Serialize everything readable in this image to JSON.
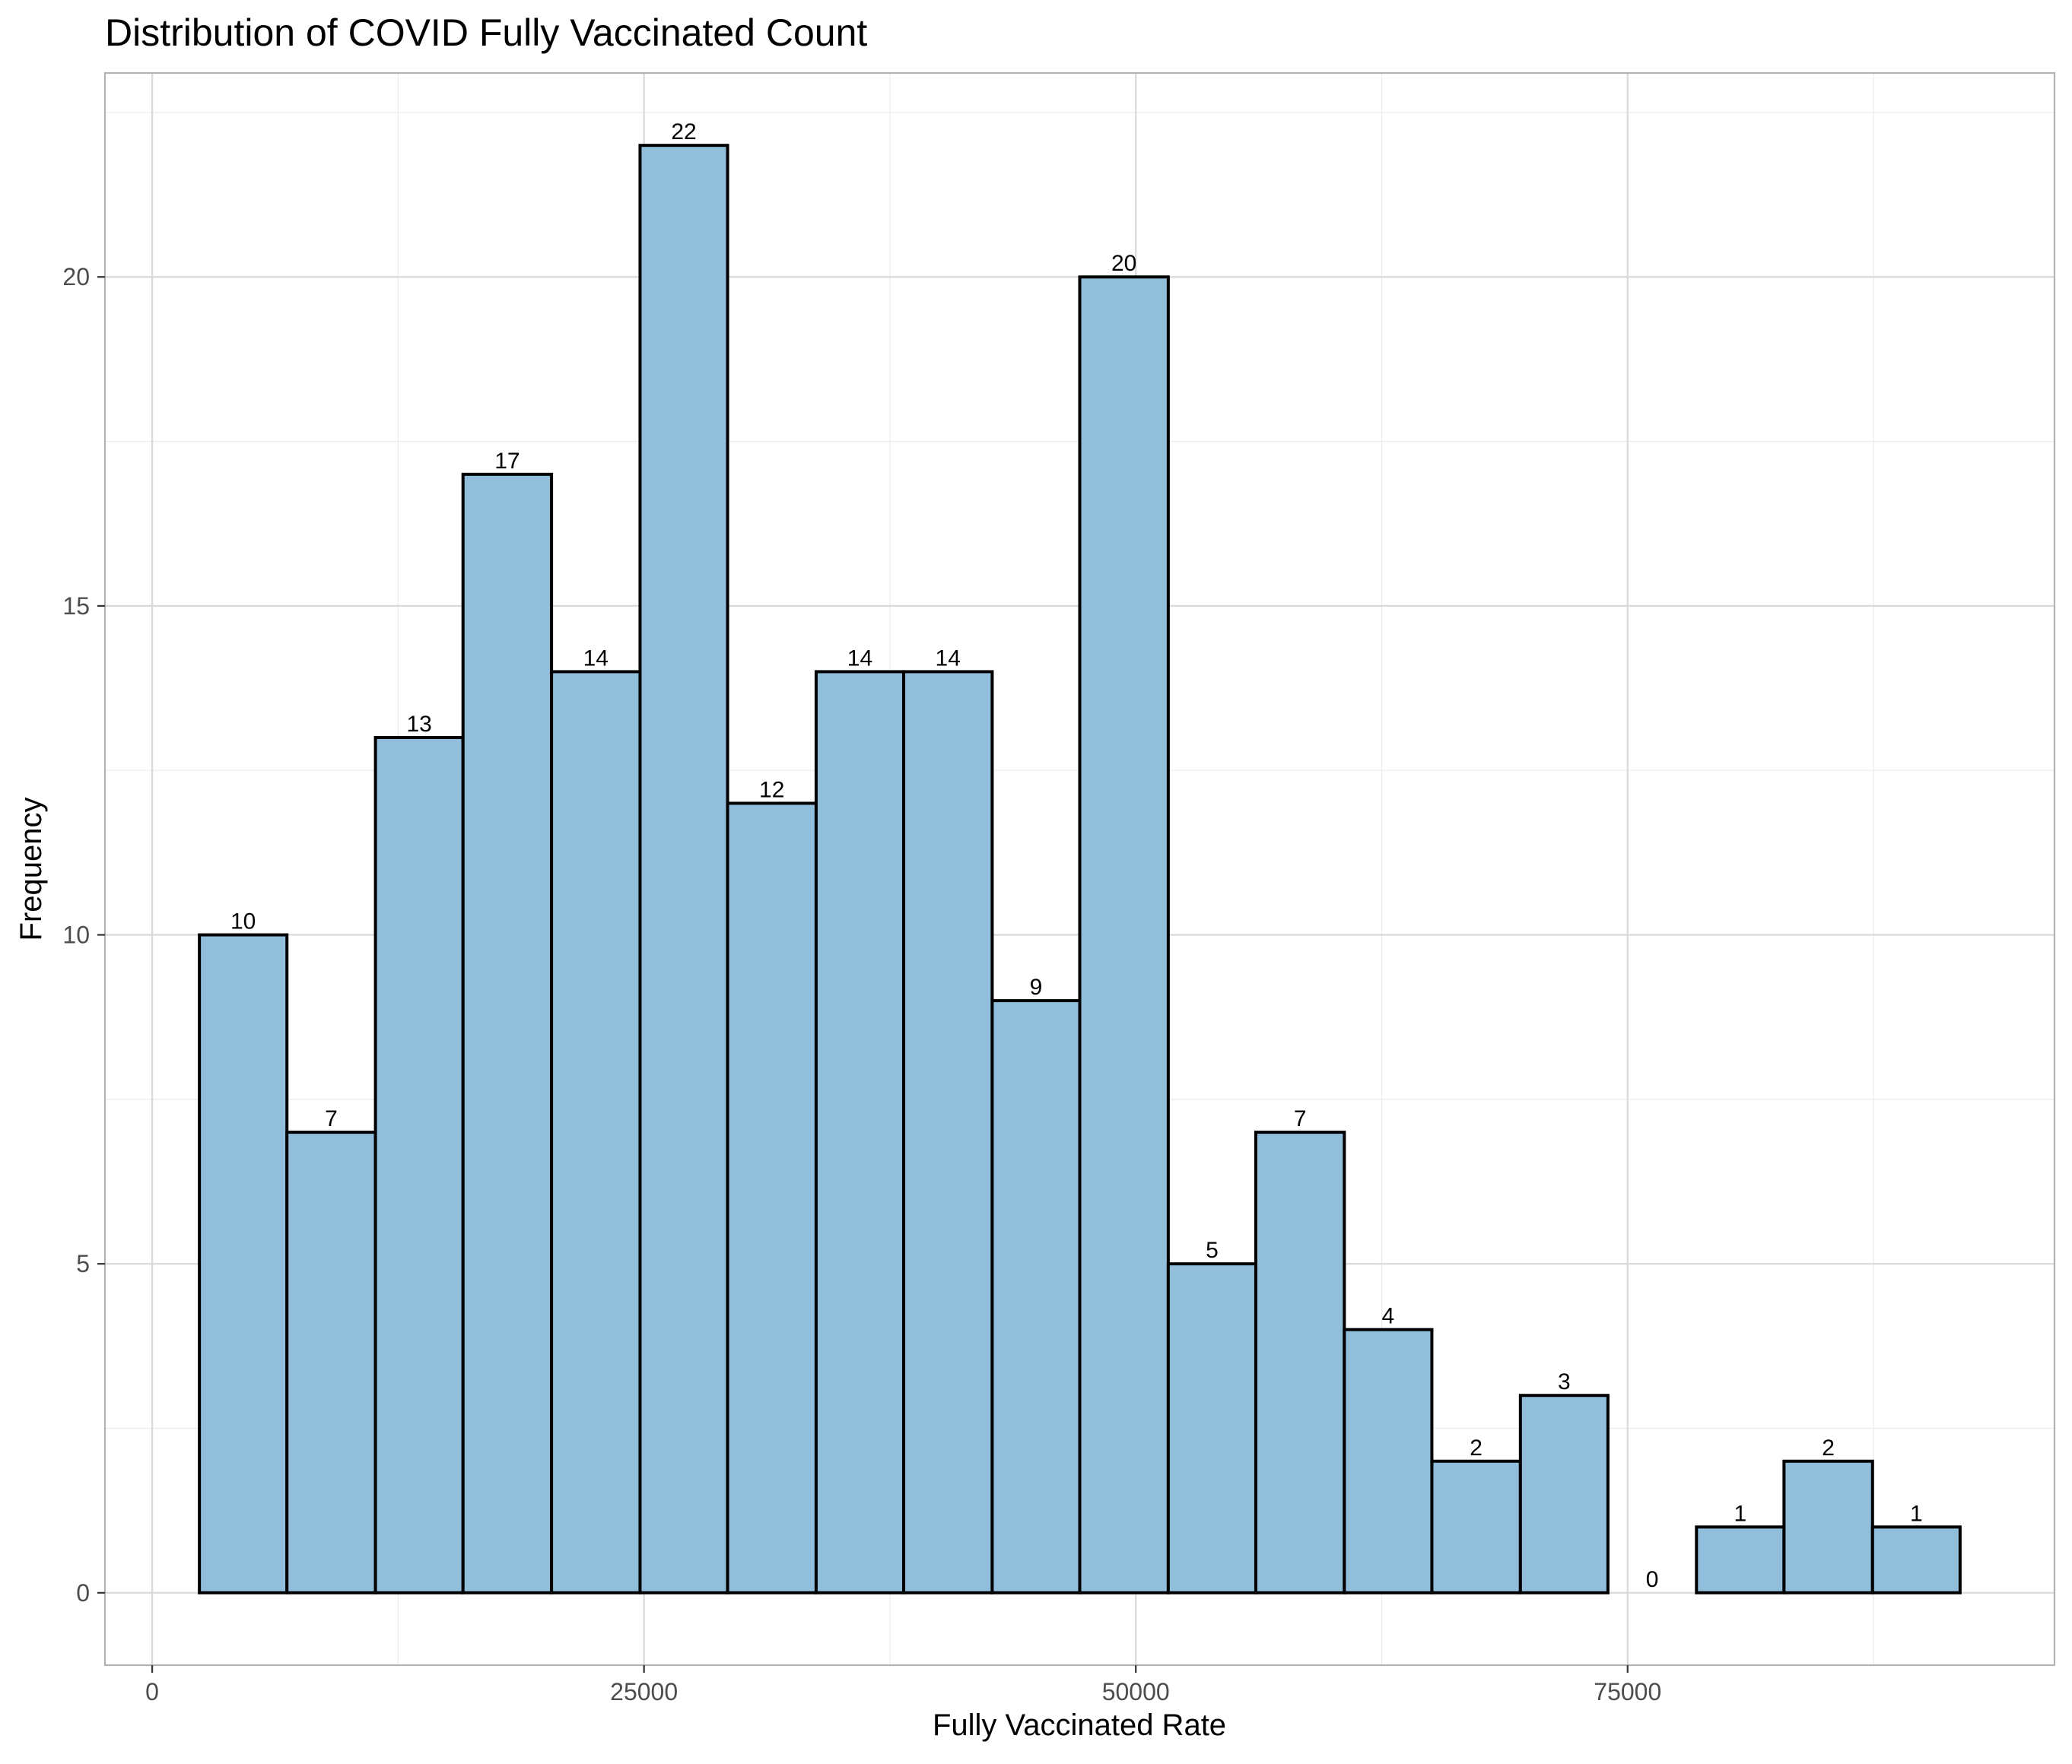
{
  "chart_data": {
    "type": "bar",
    "title": "Distribution of COVID Fully Vaccinated Count",
    "xlabel": "Fully Vaccinated Rate",
    "ylabel": "Frequency",
    "bin_edges": [
      2400,
      6850,
      11350,
      15800,
      20300,
      24800,
      29250,
      33750,
      38200,
      42700,
      47150,
      51650,
      56100,
      60600,
      65050,
      69550,
      74000,
      78500,
      82950,
      87450,
      91900
    ],
    "values": [
      10,
      7,
      13,
      17,
      14,
      22,
      12,
      14,
      14,
      9,
      20,
      5,
      7,
      4,
      2,
      3,
      0,
      1,
      2,
      1
    ],
    "value_labels": [
      "10",
      "7",
      "13",
      "17",
      "14",
      "22",
      "12",
      "14",
      "14",
      "9",
      "20",
      "5",
      "7",
      "4",
      "2",
      "3",
      "0",
      "1",
      "2",
      "1"
    ],
    "xlim": [
      -2400,
      96700
    ],
    "ylim": [
      -1.1,
      23.1
    ],
    "x_ticks": [
      0,
      25000,
      50000,
      75000
    ],
    "x_tick_labels": [
      "0",
      "25000",
      "50000",
      "75000"
    ],
    "y_ticks": [
      0,
      5,
      10,
      15,
      20
    ],
    "y_tick_labels": [
      "0",
      "5",
      "10",
      "15",
      "20"
    ],
    "grid": true,
    "legend": "none",
    "colors": {
      "bar_fill": "#91bedb",
      "bar_outline": "#000000",
      "background": "#ffffff"
    }
  }
}
